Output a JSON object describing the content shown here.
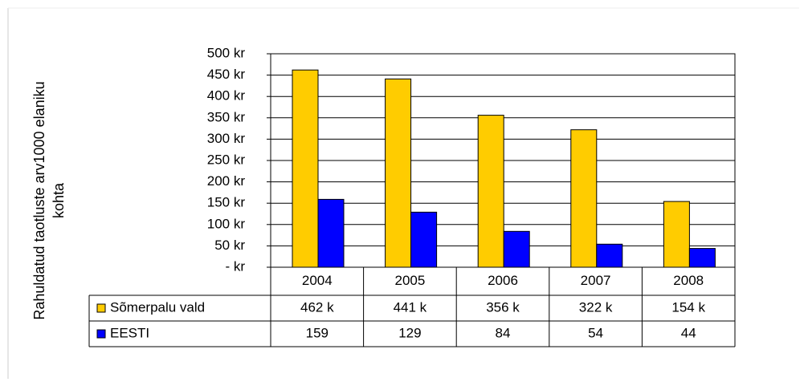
{
  "chart_data": {
    "type": "bar",
    "y_label": [
      "Rahuldatud taotluste arv1000 elaniku",
      "kohta"
    ],
    "categories": [
      "2004",
      "2005",
      "2006",
      "2007",
      "2008"
    ],
    "series": [
      {
        "name": "Sõmerpalu vald",
        "color": "#ffcc00",
        "values": [
          462,
          441,
          356,
          322,
          154
        ],
        "value_labels": [
          "462 k",
          "441 k",
          "356 k",
          "322 k",
          "154 k"
        ]
      },
      {
        "name": "EESTI",
        "color": "#0000ff",
        "values": [
          159,
          129,
          84,
          54,
          44
        ]
      }
    ],
    "ylim": [
      0,
      500
    ],
    "yticks": [
      {
        "value": 0,
        "label": "- kr"
      },
      {
        "value": 50,
        "label": "50 kr"
      },
      {
        "value": 100,
        "label": "100 kr"
      },
      {
        "value": 150,
        "label": "150 kr"
      },
      {
        "value": 200,
        "label": "200 kr"
      },
      {
        "value": 250,
        "label": "250 kr"
      },
      {
        "value": 300,
        "label": "300 kr"
      },
      {
        "value": 350,
        "label": "350 kr"
      },
      {
        "value": 400,
        "label": "400 kr"
      },
      {
        "value": 450,
        "label": "450 kr"
      },
      {
        "value": 500,
        "label": "500 kr"
      }
    ],
    "grid": true
  }
}
